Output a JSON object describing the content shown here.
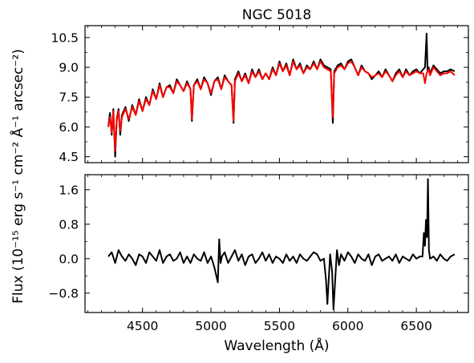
{
  "chart_data": [
    {
      "type": "line",
      "title": "NGC 5018",
      "xlabel": "",
      "ylabel": "",
      "xlim": [
        4080,
        6880
      ],
      "ylim": [
        4.2,
        11.1
      ],
      "xticks": [
        4500,
        5000,
        5500,
        6000,
        6500
      ],
      "yticks": [
        4.5,
        6.0,
        7.5,
        9.0,
        10.5
      ],
      "ytick_labels": [
        "4.5",
        "6.0",
        "7.5",
        "9.0",
        "10.5"
      ],
      "grid": false,
      "legend": "none",
      "series": [
        {
          "color": "#000000",
          "x": [
            4250,
            4262,
            4275,
            4287,
            4300,
            4312,
            4325,
            4337,
            4350,
            4375,
            4400,
            4425,
            4450,
            4475,
            4500,
            4525,
            4550,
            4575,
            4600,
            4625,
            4650,
            4675,
            4700,
            4725,
            4750,
            4775,
            4800,
            4825,
            4850,
            4861,
            4875,
            4900,
            4925,
            4950,
            4975,
            5000,
            5025,
            5050,
            5075,
            5100,
            5125,
            5150,
            5165,
            5175,
            5200,
            5225,
            5250,
            5275,
            5300,
            5325,
            5350,
            5375,
            5400,
            5425,
            5450,
            5475,
            5500,
            5525,
            5550,
            5575,
            5600,
            5625,
            5650,
            5675,
            5700,
            5725,
            5750,
            5775,
            5800,
            5825,
            5850,
            5875,
            5890,
            5900,
            5925,
            5950,
            5975,
            6000,
            6025,
            6050,
            6075,
            6100,
            6125,
            6150,
            6175,
            6200,
            6225,
            6250,
            6275,
            6300,
            6325,
            6350,
            6375,
            6400,
            6425,
            6450,
            6475,
            6500,
            6525,
            6550,
            6563,
            6575,
            6582,
            6590,
            6600,
            6625,
            6650,
            6675,
            6700,
            6725,
            6750,
            6780
          ],
          "y": [
            6.0,
            6.7,
            5.6,
            6.9,
            4.5,
            6.4,
            6.9,
            5.6,
            6.6,
            7.0,
            6.3,
            7.1,
            6.6,
            7.4,
            6.8,
            7.5,
            7.1,
            7.9,
            7.4,
            8.2,
            7.5,
            8.0,
            8.1,
            7.7,
            8.4,
            8.1,
            7.8,
            8.3,
            7.9,
            6.3,
            8.1,
            8.4,
            7.9,
            8.5,
            8.2,
            7.6,
            8.3,
            8.5,
            7.9,
            8.6,
            8.3,
            8.1,
            6.2,
            8.4,
            8.8,
            8.3,
            8.7,
            8.2,
            8.9,
            8.5,
            8.9,
            8.4,
            8.7,
            8.4,
            9.0,
            8.6,
            9.3,
            8.8,
            9.2,
            8.6,
            9.4,
            8.9,
            9.2,
            8.7,
            9.1,
            8.9,
            9.3,
            8.9,
            9.4,
            9.1,
            9.0,
            8.9,
            6.2,
            8.8,
            9.1,
            9.2,
            8.9,
            9.3,
            9.4,
            9.0,
            8.6,
            9.1,
            8.8,
            8.7,
            8.4,
            8.6,
            8.8,
            8.5,
            8.9,
            8.6,
            8.3,
            8.7,
            8.9,
            8.5,
            8.9,
            8.6,
            8.8,
            8.9,
            8.7,
            8.9,
            9.0,
            10.7,
            8.8,
            9.0,
            8.7,
            9.1,
            8.9,
            8.7,
            8.8,
            8.8,
            8.9,
            8.8
          ]
        },
        {
          "color": "#ff0000",
          "x": [
            4250,
            4262,
            4275,
            4287,
            4300,
            4312,
            4325,
            4337,
            4350,
            4375,
            4400,
            4425,
            4450,
            4475,
            4500,
            4525,
            4550,
            4575,
            4600,
            4625,
            4650,
            4675,
            4700,
            4725,
            4750,
            4775,
            4800,
            4825,
            4850,
            4861,
            4875,
            4900,
            4925,
            4950,
            4975,
            5000,
            5025,
            5050,
            5075,
            5100,
            5125,
            5150,
            5165,
            5175,
            5200,
            5225,
            5250,
            5275,
            5300,
            5325,
            5350,
            5375,
            5400,
            5425,
            5450,
            5475,
            5500,
            5525,
            5550,
            5575,
            5600,
            5625,
            5650,
            5675,
            5700,
            5725,
            5750,
            5775,
            5800,
            5825,
            5850,
            5875,
            5890,
            5900,
            5925,
            5950,
            5975,
            6000,
            6025,
            6050,
            6075,
            6100,
            6125,
            6150,
            6175,
            6200,
            6225,
            6250,
            6275,
            6300,
            6325,
            6350,
            6375,
            6400,
            6425,
            6450,
            6475,
            6500,
            6525,
            6550,
            6563,
            6575,
            6582,
            6590,
            6600,
            6625,
            6650,
            6675,
            6700,
            6725,
            6750,
            6780
          ],
          "y": [
            6.0,
            6.5,
            5.7,
            6.8,
            4.8,
            6.3,
            6.8,
            5.8,
            6.5,
            6.9,
            6.4,
            7.0,
            6.6,
            7.3,
            6.8,
            7.4,
            7.1,
            7.8,
            7.4,
            8.1,
            7.5,
            8.0,
            8.0,
            7.7,
            8.3,
            8.1,
            7.8,
            8.2,
            7.9,
            6.4,
            8.1,
            8.3,
            7.9,
            8.4,
            8.2,
            7.7,
            8.3,
            8.4,
            7.9,
            8.5,
            8.3,
            8.1,
            6.3,
            8.3,
            8.7,
            8.3,
            8.6,
            8.2,
            8.8,
            8.5,
            8.8,
            8.4,
            8.7,
            8.4,
            8.9,
            8.6,
            9.2,
            8.8,
            9.1,
            8.6,
            9.3,
            8.9,
            9.1,
            8.7,
            9.0,
            8.9,
            9.2,
            8.9,
            9.3,
            9.0,
            8.9,
            8.8,
            6.5,
            8.7,
            9.0,
            9.1,
            8.9,
            9.2,
            9.3,
            9.0,
            8.6,
            9.0,
            8.8,
            8.7,
            8.5,
            8.6,
            8.7,
            8.5,
            8.8,
            8.6,
            8.3,
            8.6,
            8.8,
            8.5,
            8.8,
            8.6,
            8.7,
            8.8,
            8.7,
            8.7,
            8.2,
            8.7,
            8.8,
            8.9,
            8.6,
            9.0,
            8.8,
            8.6,
            8.7,
            8.7,
            8.8,
            8.6
          ]
        }
      ]
    },
    {
      "type": "line",
      "title": "",
      "xlabel": "Wavelength (Å)",
      "ylabel": "",
      "xlim": [
        4080,
        6880
      ],
      "ylim": [
        -1.25,
        1.95
      ],
      "xticks": [
        4500,
        5000,
        5500,
        6000,
        6500
      ],
      "xtick_labels": [
        "4500",
        "5000",
        "5500",
        "6000",
        "6500"
      ],
      "yticks": [
        -0.8,
        0.0,
        0.8,
        1.6
      ],
      "ytick_labels": [
        "−0.8",
        "0.0",
        "0.8",
        "1.6"
      ],
      "grid": false,
      "legend": "none",
      "series": [
        {
          "color": "#000000",
          "x": [
            4250,
            4275,
            4300,
            4325,
            4350,
            4375,
            4400,
            4425,
            4450,
            4475,
            4500,
            4525,
            4550,
            4575,
            4600,
            4625,
            4650,
            4675,
            4700,
            4725,
            4750,
            4775,
            4800,
            4825,
            4850,
            4875,
            4900,
            4925,
            4950,
            4975,
            5000,
            5025,
            5050,
            5060,
            5070,
            5080,
            5100,
            5125,
            5150,
            5175,
            5200,
            5225,
            5250,
            5275,
            5300,
            5325,
            5350,
            5375,
            5400,
            5425,
            5450,
            5475,
            5500,
            5525,
            5550,
            5575,
            5600,
            5625,
            5650,
            5675,
            5700,
            5725,
            5750,
            5775,
            5800,
            5825,
            5840,
            5850,
            5870,
            5885,
            5895,
            5905,
            5920,
            5935,
            5950,
            5975,
            6000,
            6025,
            6050,
            6075,
            6100,
            6125,
            6150,
            6175,
            6200,
            6225,
            6250,
            6275,
            6300,
            6325,
            6350,
            6375,
            6400,
            6425,
            6450,
            6475,
            6500,
            6525,
            6545,
            6555,
            6563,
            6570,
            6578,
            6585,
            6592,
            6600,
            6625,
            6650,
            6675,
            6700,
            6725,
            6750,
            6780
          ],
          "y": [
            0.05,
            0.15,
            -0.1,
            0.2,
            0.05,
            -0.05,
            0.1,
            0.0,
            -0.15,
            0.1,
            0.05,
            -0.1,
            0.15,
            0.05,
            -0.05,
            0.2,
            -0.1,
            0.05,
            0.1,
            -0.05,
            0.0,
            0.15,
            -0.1,
            0.05,
            -0.1,
            0.1,
            0.0,
            -0.05,
            0.15,
            -0.1,
            0.05,
            -0.2,
            -0.55,
            0.45,
            -0.1,
            0.05,
            0.15,
            -0.1,
            0.05,
            0.2,
            -0.05,
            0.1,
            -0.15,
            0.05,
            0.1,
            -0.1,
            0.0,
            0.15,
            -0.05,
            0.1,
            -0.1,
            0.05,
            0.0,
            -0.1,
            0.1,
            -0.05,
            0.05,
            -0.1,
            0.1,
            0.0,
            -0.05,
            0.05,
            0.15,
            0.1,
            -0.05,
            0.0,
            -0.5,
            -1.05,
            0.1,
            -0.3,
            -1.18,
            -0.6,
            0.2,
            -0.15,
            0.1,
            -0.05,
            0.15,
            0.05,
            -0.1,
            0.1,
            0.0,
            -0.05,
            0.1,
            -0.15,
            0.05,
            0.1,
            -0.05,
            0.0,
            0.05,
            -0.05,
            0.1,
            -0.1,
            0.05,
            0.0,
            -0.05,
            0.1,
            0.0,
            0.05,
            0.05,
            0.6,
            0.3,
            0.9,
            0.5,
            1.85,
            0.2,
            0.0,
            0.05,
            -0.05,
            0.1,
            0.0,
            -0.05,
            0.05,
            0.1
          ]
        }
      ]
    }
  ],
  "shared_ylabel": "Flux (10⁻¹⁵ erg s⁻¹ cm⁻² Å⁻¹ arcsec⁻²)"
}
